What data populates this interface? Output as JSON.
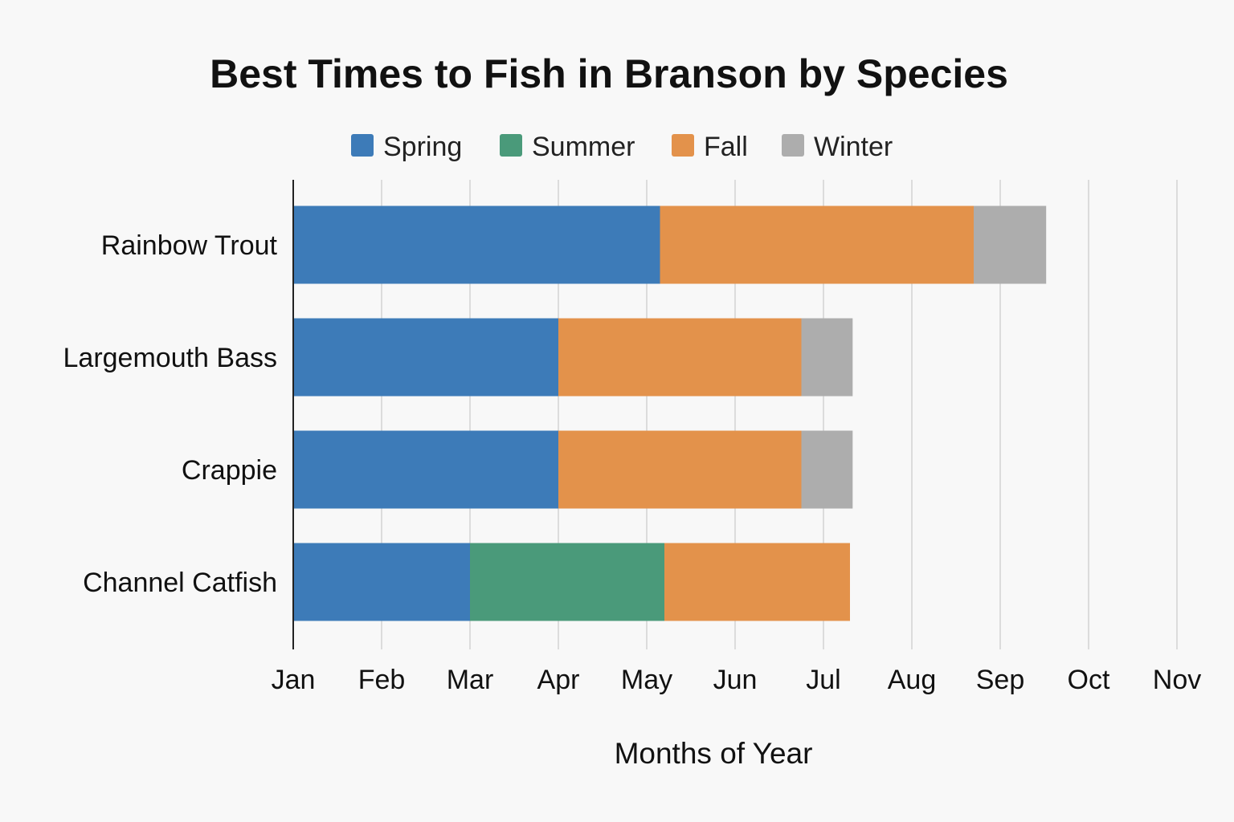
{
  "chart_data": {
    "type": "bar",
    "orientation": "horizontal",
    "stacked": true,
    "title": "Best Times to Fish in Branson by Species",
    "xlabel": "Months of Year",
    "ylabel": "",
    "x_tick_labels": [
      "Jan",
      "Feb",
      "Mar",
      "Apr",
      "May",
      "Jun",
      "Jul",
      "Aug",
      "Sep",
      "Oct",
      "Nov"
    ],
    "xlim_months_from_jan": [
      0,
      10
    ],
    "grid": "vertical",
    "legend_position": "top",
    "categories": [
      "Rainbow Trout",
      "Largemouth Bass",
      "Crappie",
      "Channel Catfish"
    ],
    "series": [
      {
        "name": "Spring",
        "color": "#3d7bb8",
        "values": [
          4.15,
          3.0,
          3.0,
          2.0
        ]
      },
      {
        "name": "Summer",
        "color": "#4a9a7a",
        "values": [
          0,
          0,
          0,
          2.2
        ]
      },
      {
        "name": "Fall",
        "color": "#e3924b",
        "values": [
          3.55,
          2.75,
          2.75,
          2.1
        ]
      },
      {
        "name": "Winter",
        "color": "#adadad",
        "values": [
          0.82,
          0.58,
          0.58,
          0
        ]
      }
    ]
  }
}
